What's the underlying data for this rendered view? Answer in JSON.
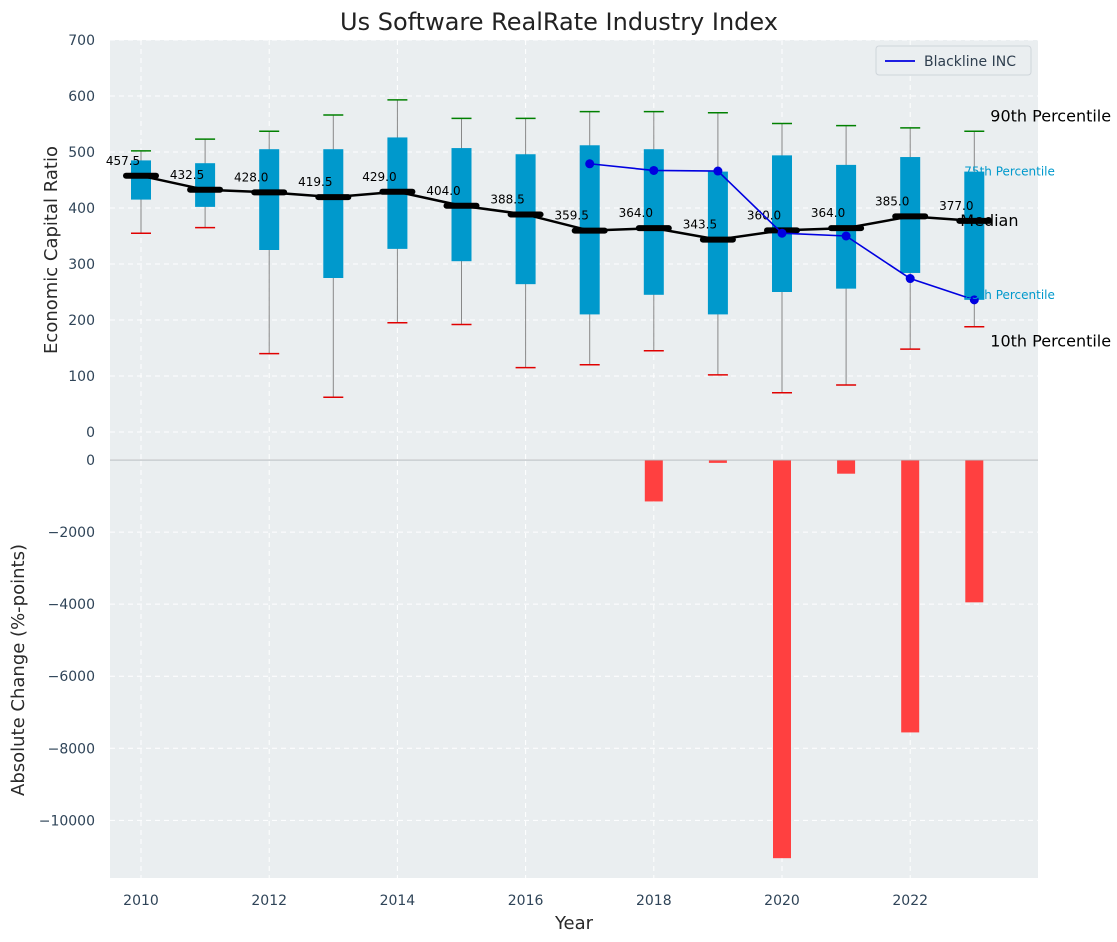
{
  "chart_data": [
    {
      "type": "box",
      "title": "Us Software RealRate Industry Index",
      "ylabel": "Economic Capital Ratio",
      "ylim": [
        0,
        700
      ],
      "yticks": [
        "0",
        "100",
        "200",
        "300",
        "400",
        "500",
        "600",
        "700"
      ],
      "grid": true,
      "legend_position": "top-right",
      "x": [
        2010,
        2011,
        2012,
        2013,
        2014,
        2015,
        2016,
        2017,
        2018,
        2019,
        2020,
        2021,
        2022,
        2023
      ],
      "p10": [
        355,
        365,
        140,
        62,
        195,
        192,
        115,
        120,
        145,
        102,
        70,
        84,
        148,
        188
      ],
      "p25": [
        415,
        402,
        325,
        275,
        327,
        305,
        264,
        210,
        245,
        210,
        250,
        256,
        284,
        236
      ],
      "median": [
        457.5,
        432.5,
        428.0,
        419.5,
        429.0,
        404.0,
        388.5,
        359.5,
        364.0,
        343.5,
        360.0,
        364.0,
        385.0,
        377.0
      ],
      "median_labels": [
        "457.5",
        "432.5",
        "428.0",
        "419.5",
        "429.0",
        "404.0",
        "388.5",
        "359.5",
        "364.0",
        "343.5",
        "360.0",
        "364.0",
        "385.0",
        "377.0"
      ],
      "p75": [
        485,
        480,
        505,
        505,
        526,
        507,
        496,
        512,
        505,
        465,
        494,
        477,
        491,
        465
      ],
      "p90": [
        502,
        523,
        537,
        566,
        593,
        560,
        560,
        572,
        572,
        570,
        551,
        547,
        543,
        537
      ],
      "series": [
        {
          "name": "Blackline INC",
          "x": [
            2017,
            2018,
            2019,
            2020,
            2021,
            2022,
            2023
          ],
          "values": [
            479,
            467,
            466,
            355,
            350,
            274,
            236
          ]
        }
      ],
      "annotations": {
        "p90": "90th Percentile",
        "p75": "75th Percentile",
        "median": "Median",
        "p25": "25th Percentile",
        "p10": "10th Percentile"
      },
      "colors": {
        "box": "#0099cc",
        "median": "#000000",
        "p90_cap": "#008000",
        "p10_cap": "#e00000",
        "whisker": "#888888",
        "company_line": "#0000e0",
        "panel_bg": "#eaeef0",
        "grid": "#ffffff",
        "tick_text": "#2f4458"
      }
    },
    {
      "type": "bar",
      "xlabel": "Year",
      "ylabel": "Absolute Change (%-points)",
      "ylim": [
        -11600,
        0
      ],
      "yticks": [
        "0",
        "−2000",
        "−4000",
        "−6000",
        "−8000",
        "−10000"
      ],
      "xticks": [
        "2010",
        "2012",
        "2014",
        "2016",
        "2018",
        "2020",
        "2022"
      ],
      "grid": true,
      "x": [
        2017,
        2018,
        2019,
        2020,
        2021,
        2022,
        2023
      ],
      "values": [
        0,
        -1150,
        -80,
        -11050,
        -380,
        -7560,
        -3950
      ],
      "colors": {
        "bar": "#ff4040"
      }
    }
  ]
}
